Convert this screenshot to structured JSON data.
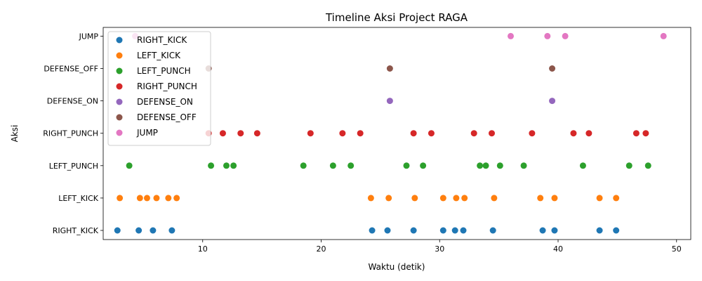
{
  "chart_data": {
    "type": "scatter",
    "title": "Timeline Aksi Project RAGA",
    "xlabel": "Waktu (detik)",
    "ylabel": "Aksi",
    "xlim": [
      1.6,
      51.2
    ],
    "x_ticks": [
      10,
      20,
      30,
      40,
      50
    ],
    "categories": [
      "RIGHT_KICK",
      "LEFT_KICK",
      "LEFT_PUNCH",
      "RIGHT_PUNCH",
      "DEFENSE_ON",
      "DEFENSE_OFF",
      "JUMP"
    ],
    "legend_position": "top-left",
    "grid": false,
    "series": [
      {
        "name": "RIGHT_KICK",
        "color": "#1f77b4",
        "category": "RIGHT_KICK",
        "x": [
          2.8,
          4.6,
          5.8,
          7.4,
          24.3,
          25.6,
          27.8,
          30.3,
          31.3,
          32.0,
          34.5,
          38.7,
          39.7,
          43.5,
          44.9
        ]
      },
      {
        "name": "LEFT_KICK",
        "color": "#ff7f0e",
        "category": "LEFT_KICK",
        "x": [
          3.0,
          4.7,
          5.3,
          6.1,
          7.1,
          7.8,
          24.2,
          25.7,
          27.9,
          30.3,
          31.4,
          32.1,
          34.6,
          38.5,
          39.7,
          43.5,
          44.9
        ]
      },
      {
        "name": "LEFT_PUNCH",
        "color": "#2ca02c",
        "category": "LEFT_PUNCH",
        "x": [
          3.8,
          10.7,
          12.0,
          12.6,
          18.5,
          21.0,
          22.5,
          27.2,
          28.6,
          33.4,
          33.9,
          35.1,
          37.1,
          42.1,
          46.0,
          47.6
        ]
      },
      {
        "name": "RIGHT_PUNCH",
        "color": "#d62728",
        "category": "RIGHT_PUNCH",
        "x": [
          10.5,
          11.7,
          13.2,
          14.6,
          19.1,
          21.8,
          23.3,
          27.8,
          29.3,
          32.9,
          34.4,
          37.8,
          41.3,
          42.6,
          46.6,
          47.4
        ]
      },
      {
        "name": "DEFENSE_ON",
        "color": "#9467bd",
        "category": "DEFENSE_ON",
        "x": [
          25.8,
          39.5
        ]
      },
      {
        "name": "DEFENSE_OFF",
        "color": "#8c564b",
        "category": "DEFENSE_OFF",
        "x": [
          10.5,
          25.8,
          39.5
        ]
      },
      {
        "name": "JUMP",
        "color": "#e377c2",
        "category": "JUMP",
        "x": [
          4.3,
          36.0,
          39.1,
          40.6,
          48.9
        ]
      }
    ]
  }
}
